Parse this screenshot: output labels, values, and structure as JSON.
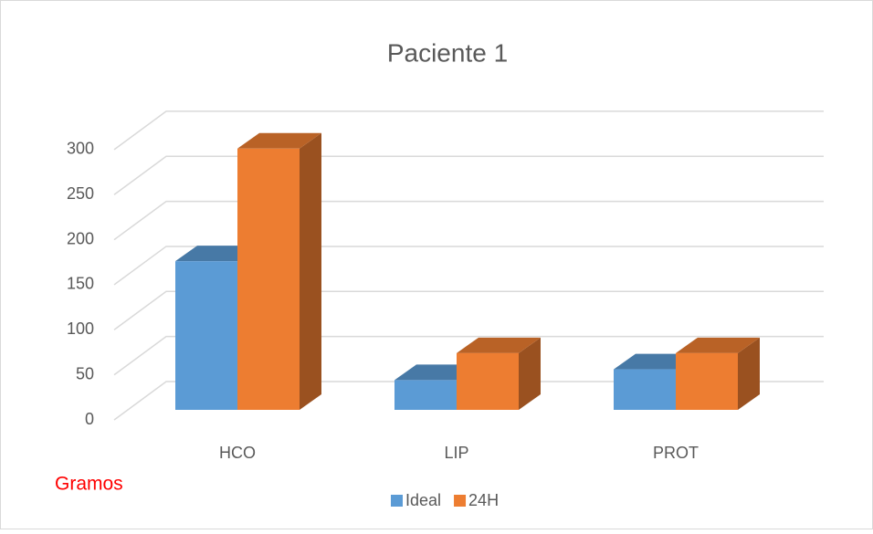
{
  "chart_data": {
    "type": "bar3d",
    "title": "Paciente 1",
    "annotation": "Gramos",
    "categories": [
      "HCO",
      "LIP",
      "PROT"
    ],
    "series": [
      {
        "name": "Ideal",
        "color": "#5b9bd5",
        "values": [
          165,
          33,
          45
        ]
      },
      {
        "name": "24H",
        "color": "#ed7d31",
        "values": [
          290,
          63,
          63
        ]
      }
    ],
    "ylim": [
      0,
      300
    ],
    "yticks": [
      0,
      50,
      100,
      150,
      200,
      250,
      300
    ],
    "grid": true,
    "legend": "bottom"
  }
}
